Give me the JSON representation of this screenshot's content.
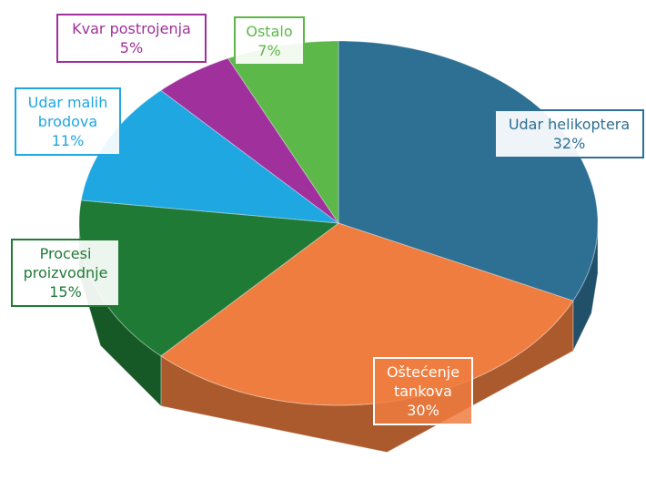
{
  "chart_data": {
    "type": "pie",
    "categories": [
      "Udar helikoptera",
      "Oštećenje tankova",
      "Procesi proizvodnje",
      "Udar malih brodova",
      "Kvar postrojenja",
      "Ostalo"
    ],
    "values": [
      32,
      30,
      15,
      11,
      5,
      7
    ],
    "value_labels": [
      "32%",
      "30%",
      "15%",
      "11%",
      "5%",
      "7%"
    ],
    "colors": [
      "#2e6f94",
      "#ee7d3f",
      "#1f7a35",
      "#1ea7e1",
      "#a0309c",
      "#5cb848"
    ]
  }
}
